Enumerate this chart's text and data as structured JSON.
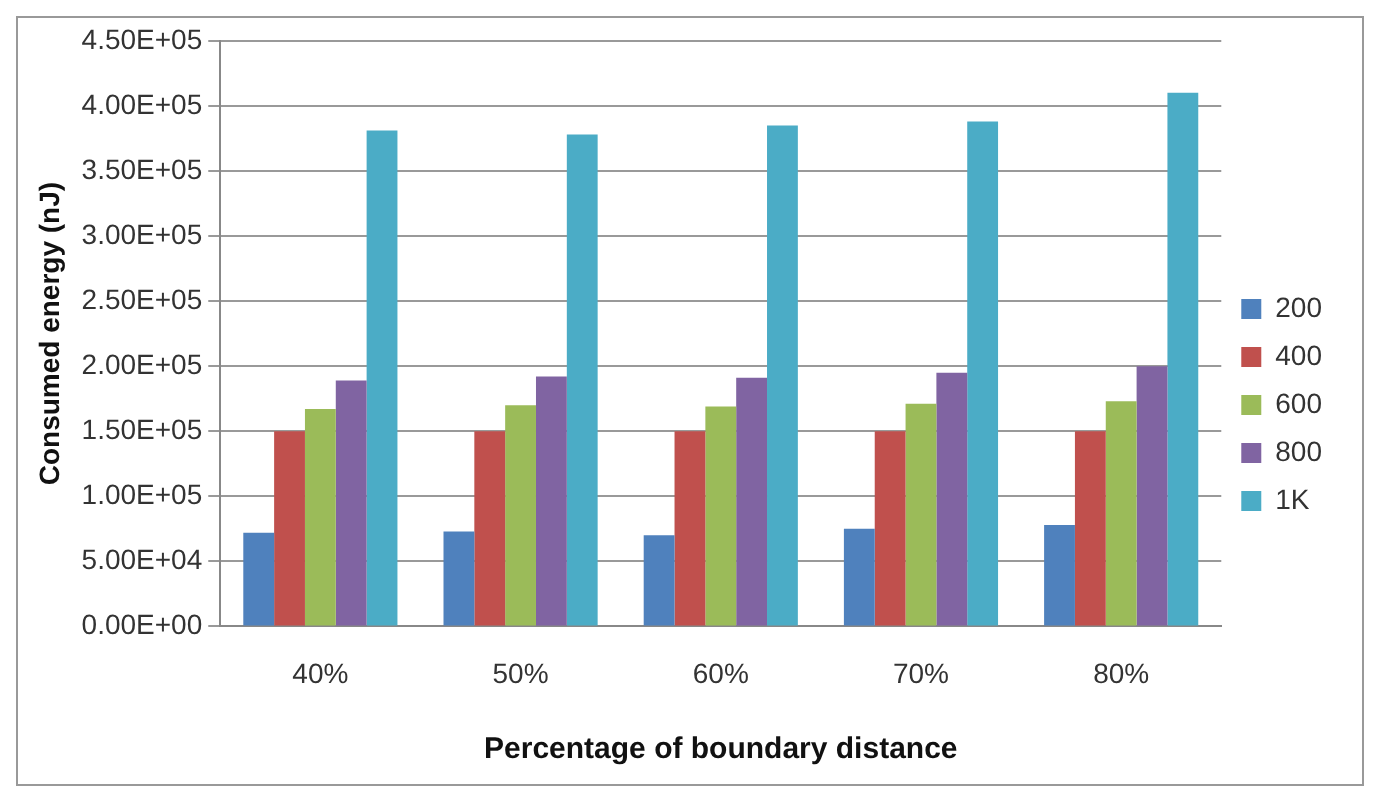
{
  "chart_data": {
    "type": "bar",
    "xlabel": "Percentage of boundary distance",
    "ylabel": "Consumed energy (nJ)",
    "categories": [
      "40%",
      "50%",
      "60%",
      "70%",
      "80%"
    ],
    "series": [
      {
        "name": "200",
        "color": "#4f81bd",
        "values": [
          72000,
          73000,
          70000,
          75000,
          78000
        ]
      },
      {
        "name": "400",
        "color": "#c0504d",
        "values": [
          150000,
          150000,
          150000,
          150000,
          150000
        ]
      },
      {
        "name": "600",
        "color": "#9bbb59",
        "values": [
          167000,
          170000,
          169000,
          171000,
          173000
        ]
      },
      {
        "name": "800",
        "color": "#8064a2",
        "values": [
          189000,
          192000,
          191000,
          195000,
          200000
        ]
      },
      {
        "name": "1K",
        "color": "#4bacc6",
        "values": [
          381000,
          378000,
          385000,
          388000,
          410000
        ]
      }
    ],
    "ylim": [
      0,
      450000
    ],
    "yticks": [
      {
        "value": 0,
        "label": "0.00E+00"
      },
      {
        "value": 50000,
        "label": "5.00E+04"
      },
      {
        "value": 100000,
        "label": "1.00E+05"
      },
      {
        "value": 150000,
        "label": "1.50E+05"
      },
      {
        "value": 200000,
        "label": "2.00E+05"
      },
      {
        "value": 250000,
        "label": "2.50E+05"
      },
      {
        "value": 300000,
        "label": "3.00E+05"
      },
      {
        "value": 350000,
        "label": "3.50E+05"
      },
      {
        "value": 400000,
        "label": "4.00E+05"
      },
      {
        "value": 450000,
        "label": "4.50E+05"
      }
    ],
    "grid": "y",
    "legend": "right"
  }
}
